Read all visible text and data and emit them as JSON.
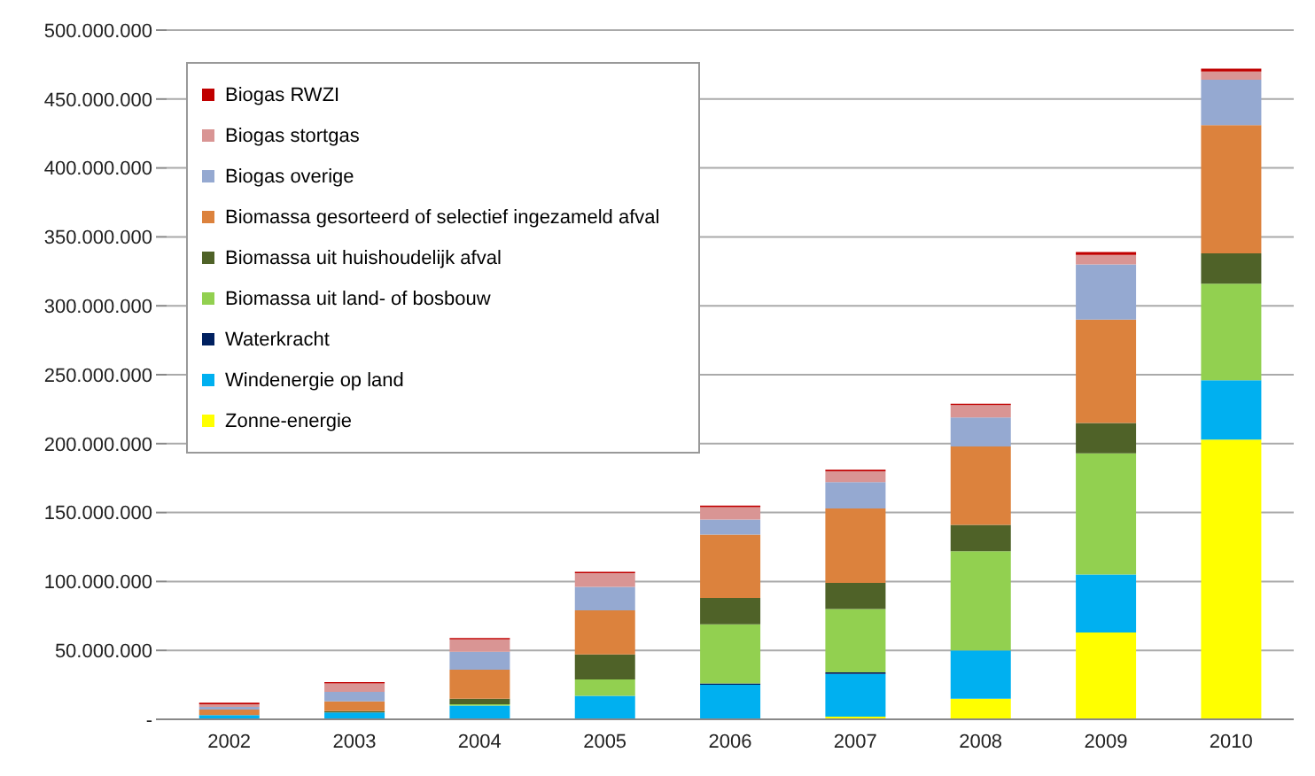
{
  "chart_data": {
    "type": "bar",
    "stacked": true,
    "categories": [
      "2002",
      "2003",
      "2004",
      "2005",
      "2006",
      "2007",
      "2008",
      "2009",
      "2010"
    ],
    "series": [
      {
        "name": "Zonne-energie",
        "color": "#ffff00",
        "values": [
          0,
          0,
          0,
          0,
          0,
          2000000,
          15000000,
          63000000,
          203000000
        ]
      },
      {
        "name": "Windenergie op land",
        "color": "#00b0f0",
        "values": [
          3000000,
          5000000,
          10000000,
          17000000,
          25000000,
          31000000,
          35000000,
          42000000,
          43000000
        ]
      },
      {
        "name": "Waterkracht",
        "color": "#002060",
        "values": [
          0,
          0,
          0,
          0,
          1000000,
          1000000,
          0,
          0,
          0
        ]
      },
      {
        "name": "Biomassa uit land- of bosbouw",
        "color": "#92d050",
        "values": [
          0,
          0,
          1000000,
          12000000,
          43000000,
          46000000,
          72000000,
          88000000,
          70000000
        ]
      },
      {
        "name": "Biomassa uit huishoudelijk  afval",
        "color": "#4f6228",
        "values": [
          0,
          1000000,
          4000000,
          18000000,
          19000000,
          19000000,
          19000000,
          22000000,
          22000000
        ]
      },
      {
        "name": "Biomassa gesorteerd of selectief ingezameld afval",
        "color": "#dc823d",
        "values": [
          4000000,
          7000000,
          21000000,
          32000000,
          46000000,
          54000000,
          57000000,
          75000000,
          93000000
        ]
      },
      {
        "name": "Biogas overige",
        "color": "#95a9d1",
        "values": [
          2000000,
          7000000,
          13000000,
          17000000,
          11000000,
          19000000,
          21000000,
          40000000,
          33000000
        ]
      },
      {
        "name": "Biogas stortgas",
        "color": "#d99594",
        "values": [
          2000000,
          6000000,
          9000000,
          10000000,
          9000000,
          8000000,
          9000000,
          7000000,
          6000000
        ]
      },
      {
        "name": "Biogas RWZI",
        "color": "#c00000",
        "values": [
          1000000,
          1000000,
          1000000,
          1000000,
          1000000,
          1000000,
          1000000,
          2000000,
          2000000
        ]
      }
    ],
    "ylim": [
      0,
      500000000
    ],
    "yticks": [
      {
        "value": 0,
        "label": "-"
      },
      {
        "value": 50000000,
        "label": "50.000.000"
      },
      {
        "value": 100000000,
        "label": "100.000.000"
      },
      {
        "value": 150000000,
        "label": "150.000.000"
      },
      {
        "value": 200000000,
        "label": "200.000.000"
      },
      {
        "value": 250000000,
        "label": "250.000.000"
      },
      {
        "value": 300000000,
        "label": "300.000.000"
      },
      {
        "value": 350000000,
        "label": "350.000.000"
      },
      {
        "value": 400000000,
        "label": "400.000.000"
      },
      {
        "value": 450000000,
        "label": "450.000.000"
      },
      {
        "value": 500000000,
        "label": "500.000.000"
      }
    ],
    "grid": "y",
    "legend": "top left"
  }
}
